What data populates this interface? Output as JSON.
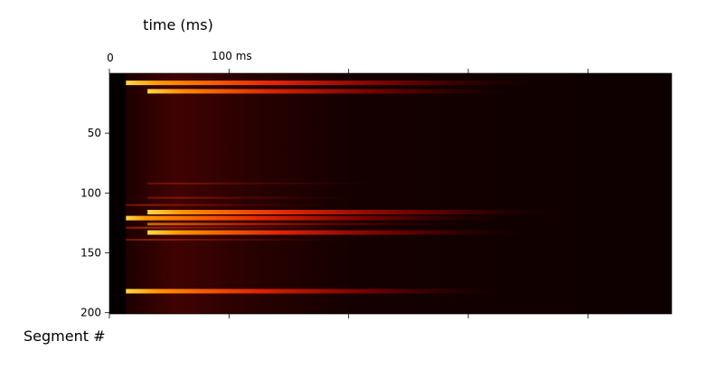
{
  "chart_data": {
    "type": "heatmap",
    "title": "",
    "xlabel": "time (ms)",
    "ylabel": "Segment #",
    "x_axis_position": "top",
    "y_inverted": true,
    "xlim": [
      0,
      470
    ],
    "ylim": [
      0,
      201
    ],
    "x_ticks": [
      {
        "value": 0,
        "label": "0"
      },
      {
        "value": 100,
        "label": "100 ms"
      },
      {
        "value": 200,
        "label": ""
      },
      {
        "value": 300,
        "label": ""
      },
      {
        "value": 400,
        "label": ""
      }
    ],
    "y_ticks": [
      {
        "value": 50,
        "label": "50"
      },
      {
        "value": 100,
        "label": "100"
      },
      {
        "value": 150,
        "label": "150"
      },
      {
        "value": 200,
        "label": "200"
      }
    ],
    "colormap": "hot",
    "colors": {
      "background": "#0d0000",
      "ridge": "#400202",
      "low": "#b00000",
      "mid": "#ff2a00",
      "high": "#ff9a00",
      "peak": "#ffd84a"
    },
    "onset_ms": 14,
    "background_ridge_ms": [
      55,
      115
    ],
    "bands": [
      {
        "segment": 8,
        "height": 5,
        "start_ms": 14,
        "peak_ms": 40,
        "end_ms": 360,
        "intensity": 1.0
      },
      {
        "segment": 15,
        "height": 5,
        "start_ms": 32,
        "peak_ms": 60,
        "end_ms": 340,
        "intensity": 0.9
      },
      {
        "segment": 92,
        "height": 2,
        "start_ms": 32,
        "peak_ms": 60,
        "end_ms": 260,
        "intensity": 0.2
      },
      {
        "segment": 104,
        "height": 2,
        "start_ms": 32,
        "peak_ms": 60,
        "end_ms": 230,
        "intensity": 0.25
      },
      {
        "segment": 110,
        "height": 2,
        "start_ms": 14,
        "peak_ms": 30,
        "end_ms": 200,
        "intensity": 0.3
      },
      {
        "segment": 116,
        "height": 5,
        "start_ms": 32,
        "peak_ms": 60,
        "end_ms": 380,
        "intensity": 0.95
      },
      {
        "segment": 121,
        "height": 5,
        "start_ms": 14,
        "peak_ms": 30,
        "end_ms": 330,
        "intensity": 1.0
      },
      {
        "segment": 126,
        "height": 3,
        "start_ms": 32,
        "peak_ms": 60,
        "end_ms": 300,
        "intensity": 0.6
      },
      {
        "segment": 129,
        "height": 2,
        "start_ms": 14,
        "peak_ms": 30,
        "end_ms": 240,
        "intensity": 0.4
      },
      {
        "segment": 133,
        "height": 5,
        "start_ms": 32,
        "peak_ms": 60,
        "end_ms": 350,
        "intensity": 0.95
      },
      {
        "segment": 139,
        "height": 2,
        "start_ms": 14,
        "peak_ms": 30,
        "end_ms": 230,
        "intensity": 0.3
      },
      {
        "segment": 182,
        "height": 5,
        "start_ms": 14,
        "peak_ms": 40,
        "end_ms": 330,
        "intensity": 0.95
      }
    ]
  }
}
